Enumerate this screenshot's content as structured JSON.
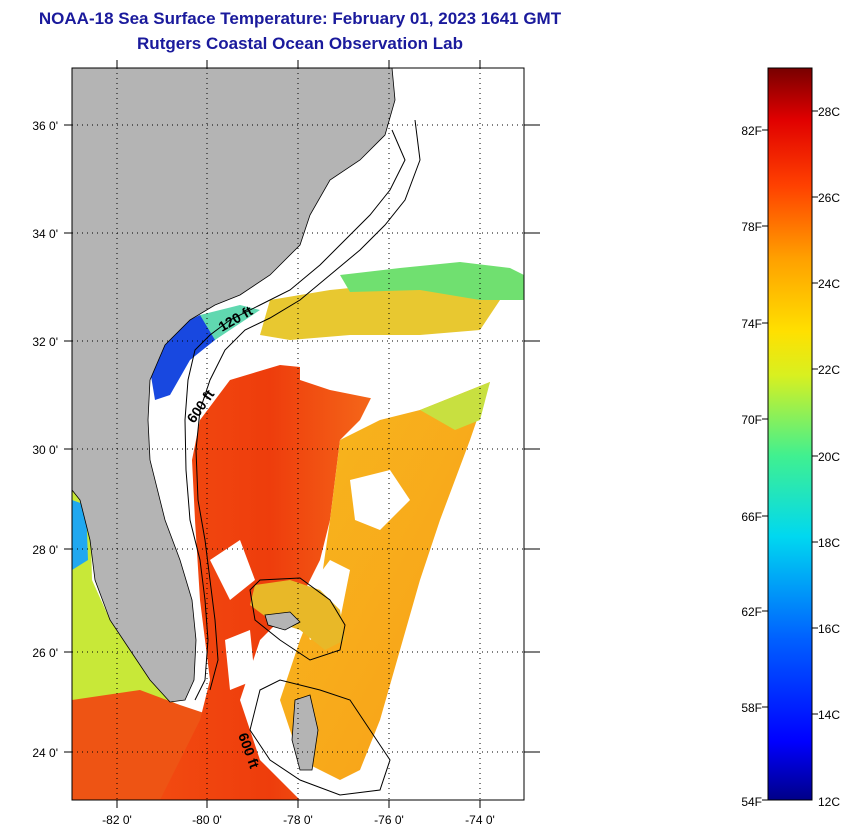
{
  "header": {
    "title": "NOAA-18 Sea Surface Temperature:  February 01, 2023 1641 GMT",
    "subtitle": "Rutgers Coastal Ocean Observation Lab"
  },
  "map": {
    "lat_labels": [
      "36 0'",
      "34 0'",
      "32 0'",
      "30 0'",
      "28 0'",
      "26 0'",
      "24 0'"
    ],
    "lon_labels": [
      "-82 0'",
      "-80 0'",
      "-78 0'",
      "-76 0'",
      "-74 0'"
    ],
    "lat_range": [
      23.0,
      37.1
    ],
    "lon_range": [
      -83.0,
      -72.7
    ],
    "contours": [
      "120 ft",
      "600 ft",
      "600 ft"
    ],
    "colors": {
      "land": "#b4b4b4",
      "cloud": "#ffffff",
      "gulf_stream": "#e83a10"
    }
  },
  "colorbar": {
    "fahrenheit_labels": [
      "82F",
      "78F",
      "74F",
      "70F",
      "66F",
      "62F",
      "58F",
      "54F"
    ],
    "celsius_labels": [
      "28C",
      "26C",
      "24C",
      "22C",
      "20C",
      "18C",
      "16C",
      "14C",
      "12C"
    ],
    "range_c": [
      12,
      29
    ]
  }
}
